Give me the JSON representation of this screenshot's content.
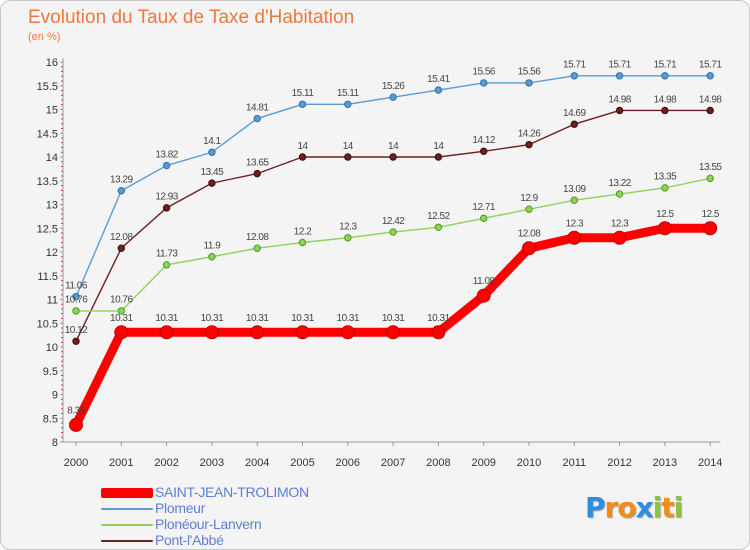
{
  "chart_data": {
    "type": "line",
    "title": "Evolution du Taux de Taxe d'Habitation",
    "unit_label": "(en %)",
    "x": [
      "2000",
      "2001",
      "2002",
      "2003",
      "2004",
      "2005",
      "2006",
      "2007",
      "2008",
      "2009",
      "2010",
      "2011",
      "2012",
      "2013",
      "2014"
    ],
    "ylim": [
      8,
      16
    ],
    "yticks": [
      "8",
      "8.5",
      "9",
      "9.5",
      "10",
      "10.5",
      "11",
      "11.5",
      "12",
      "12.5",
      "13",
      "13.5",
      "14",
      "14.5",
      "15",
      "15.5",
      "16"
    ],
    "grid": false,
    "legend_position": "bottom-left",
    "series": [
      {
        "name": "Plomeur",
        "color": "#5b9bd5",
        "values": [
          11.06,
          13.29,
          13.82,
          14.1,
          14.81,
          15.11,
          15.11,
          15.26,
          15.41,
          15.56,
          15.56,
          15.71,
          15.71,
          15.71,
          15.71
        ],
        "labels": [
          "11.06",
          "13.29",
          "13.82",
          "14.1",
          "14.81",
          "15.11",
          "15.11",
          "15.26",
          "15.41",
          "15.56",
          "15.56",
          "15.71",
          "15.71",
          "15.71",
          "15.71"
        ]
      },
      {
        "name": "Pont-l'Abbé",
        "color": "#6e1f1f",
        "values": [
          10.12,
          12.08,
          12.93,
          13.45,
          13.65,
          14,
          14,
          14,
          14,
          14.12,
          14.26,
          14.69,
          14.98,
          14.98,
          14.98
        ],
        "labels": [
          "10.12",
          "12.08",
          "12.93",
          "13.45",
          "13.65",
          "14",
          "14",
          "14",
          "14",
          "14.12",
          "14.26",
          "14.69",
          "14.98",
          "14.98",
          "14.98"
        ]
      },
      {
        "name": "Plonéour-Lanvern",
        "color": "#8ed25a",
        "values": [
          10.76,
          10.76,
          11.73,
          11.9,
          12.08,
          12.2,
          12.3,
          12.42,
          12.52,
          12.71,
          12.9,
          13.09,
          13.22,
          13.35,
          13.55
        ],
        "labels": [
          "10.76",
          "10.76",
          "11.73",
          "11.9",
          "12.08",
          "12.2",
          "12.3",
          "12.42",
          "12.52",
          "12.71",
          "12.9",
          "13.09",
          "13.22",
          "13.35",
          "13.55"
        ]
      },
      {
        "name": "SAINT-JEAN-TROLIMON",
        "color": "#ff0000",
        "values": [
          8.36,
          10.31,
          10.31,
          10.31,
          10.31,
          10.31,
          10.31,
          10.31,
          10.31,
          11.08,
          12.08,
          12.3,
          12.3,
          12.5,
          12.5
        ],
        "labels": [
          "8.36",
          "10.31",
          "10.31",
          "10.31",
          "10.31",
          "10.31",
          "10.31",
          "10.31",
          "10.31",
          "11.08",
          "12.08",
          "12.3",
          "12.3",
          "12.5",
          "12.5"
        ]
      }
    ]
  },
  "legend": [
    {
      "name": "SAINT-JEAN-TROLIMON",
      "color": "#ff0000"
    },
    {
      "name": "Plomeur",
      "color": "#5b9bd5"
    },
    {
      "name": "Plonéour-Lanvern",
      "color": "#8ed25a"
    },
    {
      "name": "Pont-l'Abbé",
      "color": "#6e1f1f"
    }
  ],
  "logo": {
    "text": "Proxiti",
    "letters": [
      "P",
      "r",
      "o",
      "x",
      "i",
      "t",
      "i"
    ],
    "letter_colors": [
      "#2e8ede",
      "#f28c1e",
      "#f28c1e",
      "#2e8ede",
      "#8ac440",
      "#f28c1e",
      "#8ac440"
    ]
  }
}
